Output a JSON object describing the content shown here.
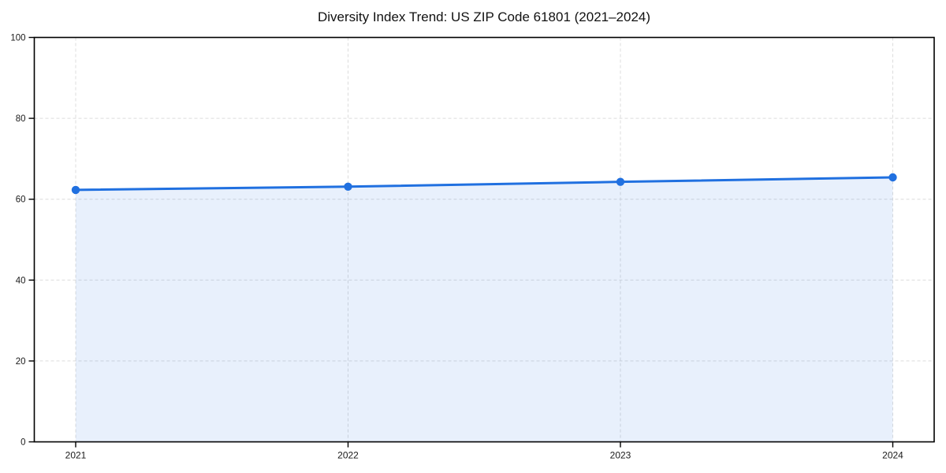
{
  "chart_data": {
    "type": "area",
    "title": "Diversity Index Trend: US ZIP Code 61801 (2021–2024)",
    "categories": [
      "2021",
      "2022",
      "2023",
      "2024"
    ],
    "series": [
      {
        "name": "Diversity Index",
        "values": [
          62.3,
          63.1,
          64.3,
          65.4
        ]
      }
    ],
    "xlabel": "",
    "ylabel": "",
    "ylim": [
      0,
      100
    ],
    "yticks": [
      0,
      20,
      40,
      60,
      80,
      100
    ],
    "grid": "dashed-both-axes",
    "legend": "none",
    "colors": {
      "line": "#2070e0",
      "marker": "#2070e0",
      "fill": "rgba(32,112,224,0.10)",
      "grid": "#dcdcdc",
      "spine": "#000000",
      "tick_label": "#1a1a1a",
      "title": "#111111",
      "background": "#ffffff"
    }
  }
}
